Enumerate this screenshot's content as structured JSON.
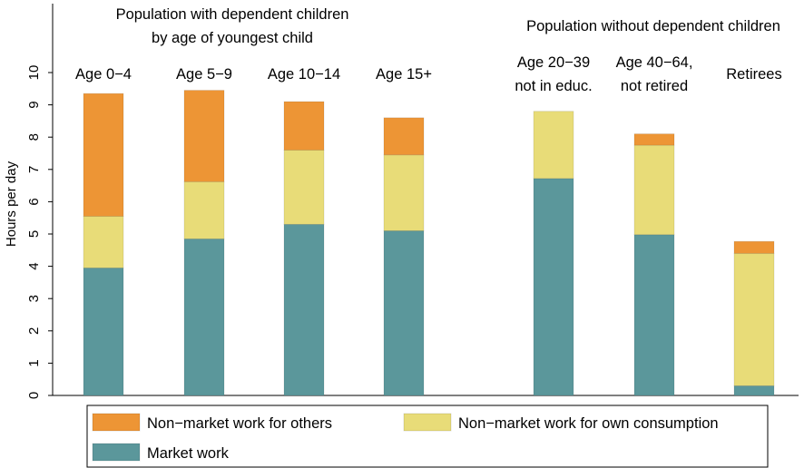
{
  "chart_data": {
    "type": "bar",
    "stacked": true,
    "ylabel": "Hours per day",
    "xlabel": "",
    "ylim": [
      0,
      10
    ],
    "yticks": [
      0,
      1,
      2,
      3,
      4,
      5,
      6,
      7,
      8,
      9,
      10
    ],
    "grid": false,
    "legend_position": "bottom",
    "group_headers": {
      "with_children_line1": "Population with dependent children",
      "with_children_line2": "by age of youngest child",
      "without_children": "Population without dependent children"
    },
    "categories": [
      [
        "Age 0−4"
      ],
      [
        "Age 5−9"
      ],
      [
        "Age 10−14"
      ],
      [
        "Age 15+"
      ],
      [
        "Age 20−39",
        "not in educ."
      ],
      [
        "Age 40−64,",
        "not retired"
      ],
      [
        "Retirees"
      ]
    ],
    "series": [
      {
        "name": "Market work",
        "color": "#5b979b",
        "values": [
          3.95,
          4.85,
          5.3,
          5.1,
          6.72,
          4.98,
          0.3
        ]
      },
      {
        "name": "Non−market work for own consumption",
        "color": "#e8dc78",
        "values": [
          1.6,
          1.77,
          2.3,
          2.35,
          2.08,
          2.77,
          4.1
        ]
      },
      {
        "name": "Non−market work for others",
        "color": "#ed9535",
        "values": [
          3.8,
          2.83,
          1.5,
          1.15,
          0,
          0.35,
          0.37
        ]
      }
    ],
    "legend": [
      {
        "series": 2,
        "label": "Non−market work for others"
      },
      {
        "series": 1,
        "label": "Non−market work for own consumption"
      },
      {
        "series": 0,
        "label": "Market work"
      }
    ]
  }
}
